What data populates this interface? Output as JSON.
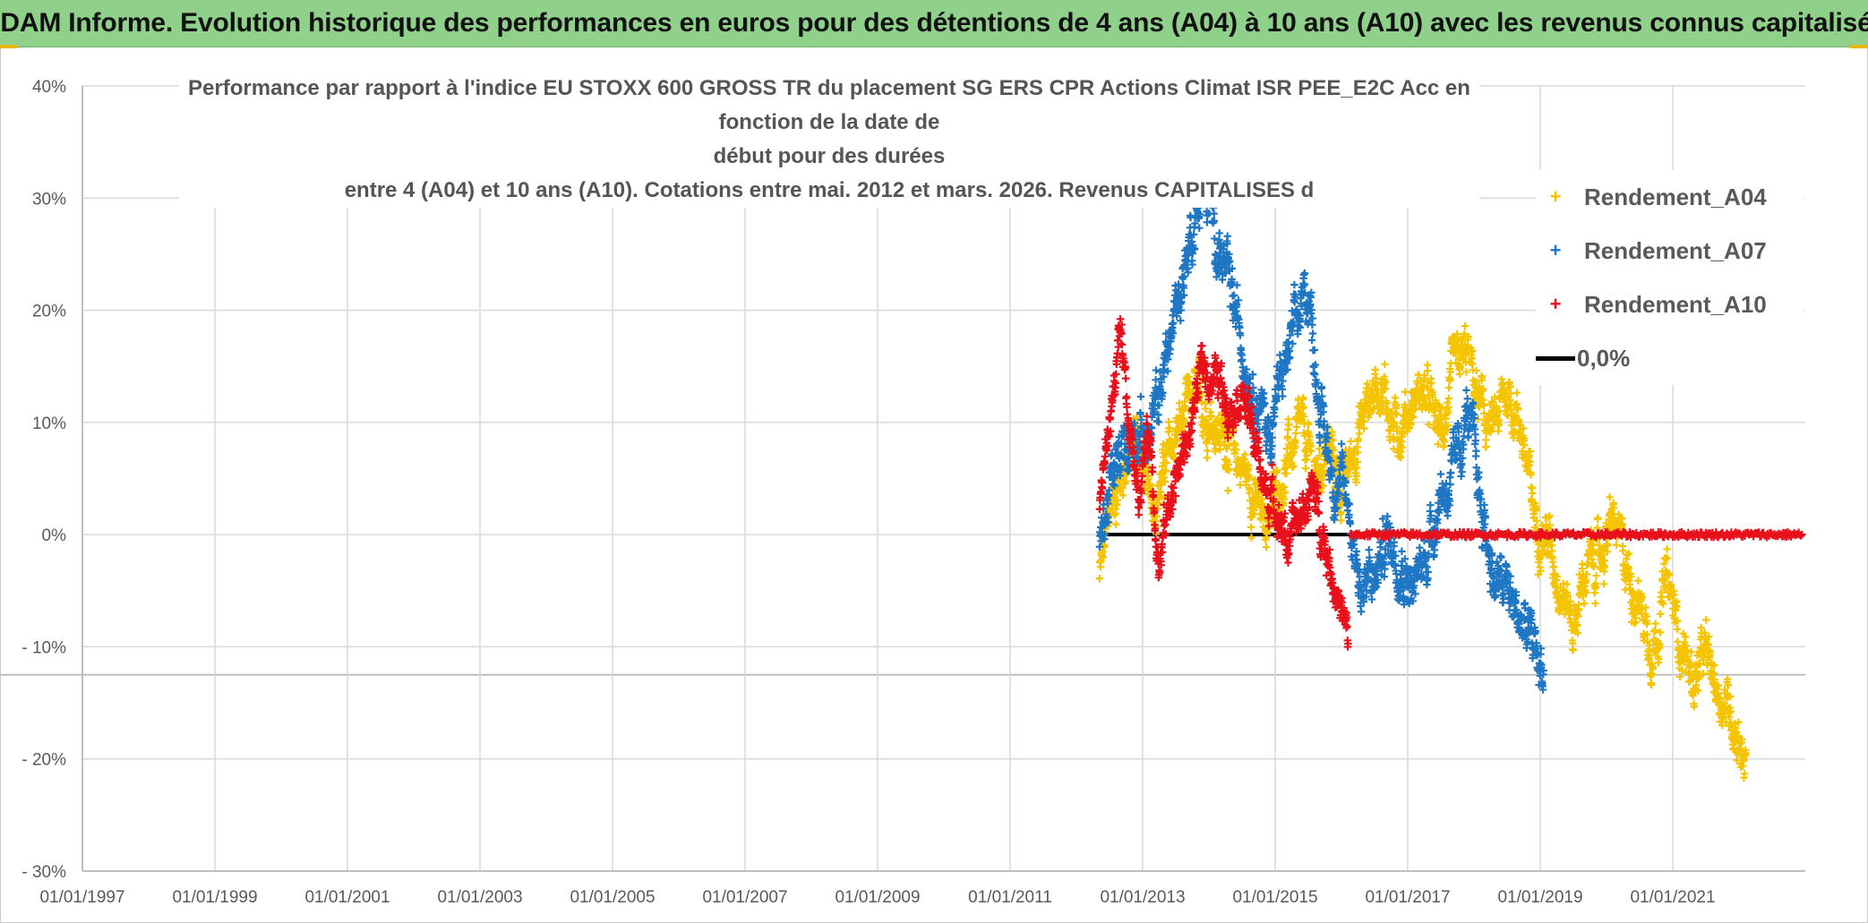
{
  "banner": {
    "title": "ADAM Informe. Evolution historique des performances en euros pour des détentions de 4 ans (A04) à 10 ans (A10) avec les revenus connus capitalisés"
  },
  "colors": {
    "banner_bg": "#8fd08a",
    "A04": "#f5c400",
    "A07": "#1f77c4",
    "A10": "#e8101a",
    "zero": "#000000",
    "grid": "#d9d9d9"
  },
  "chart_data": {
    "type": "scatter",
    "title_lines": [
      "Performance par rapport à l'indice EU STOXX 600 GROSS TR  du placement SG ERS CPR Actions Climat ISR PEE_E2C Acc en fonction de la date de",
      "début pour des durées",
      "entre 4 (A04) et 10 ans (A10). Cotations entre mai. 2012 et mars. 2026. Revenus CAPITALISES d"
    ],
    "x_range": [
      1997.0,
      2023.0
    ],
    "x_ticks": [
      {
        "value": 1997,
        "label": "01/01/1997"
      },
      {
        "value": 1999,
        "label": "01/01/1999"
      },
      {
        "value": 2001,
        "label": "01/01/2001"
      },
      {
        "value": 2003,
        "label": "01/01/2003"
      },
      {
        "value": 2005,
        "label": "01/01/2005"
      },
      {
        "value": 2007,
        "label": "01/01/2007"
      },
      {
        "value": 2009,
        "label": "01/01/2009"
      },
      {
        "value": 2011,
        "label": "01/01/2011"
      },
      {
        "value": 2013,
        "label": "01/01/2013"
      },
      {
        "value": 2015,
        "label": "01/01/2015"
      },
      {
        "value": 2017,
        "label": "01/01/2017"
      },
      {
        "value": 2019,
        "label": "01/01/2019"
      },
      {
        "value": 2021,
        "label": "01/01/2021"
      }
    ],
    "y_range": [
      -30,
      40
    ],
    "y_ticks": [
      {
        "value": 40,
        "label": "40%"
      },
      {
        "value": 30,
        "label": "30%"
      },
      {
        "value": 20,
        "label": "20%"
      },
      {
        "value": 10,
        "label": "10%"
      },
      {
        "value": 0,
        "label": "0%"
      },
      {
        "value": -10,
        "label": "- 10%"
      },
      {
        "value": -20,
        "label": "- 20%"
      },
      {
        "value": -30,
        "label": "- 30%"
      }
    ],
    "extra_hline": -12.5,
    "legend": [
      {
        "name": "Rendement_A04",
        "marker": "+",
        "color_key": "A04"
      },
      {
        "name": "Rendement_A07",
        "marker": "+",
        "color_key": "A07"
      },
      {
        "name": "Rendement_A10",
        "marker": "+",
        "color_key": "A10"
      },
      {
        "name": "0,0%",
        "marker": "line",
        "color_key": "zero"
      }
    ],
    "series": [
      {
        "name": "Rendement_A04",
        "color_key": "A04",
        "anchors": [
          [
            2012.35,
            -4
          ],
          [
            2012.5,
            2
          ],
          [
            2012.7,
            6
          ],
          [
            2012.9,
            9
          ],
          [
            2013.1,
            3
          ],
          [
            2013.3,
            5
          ],
          [
            2013.5,
            9
          ],
          [
            2013.8,
            12
          ],
          [
            2014.0,
            11
          ],
          [
            2014.2,
            9
          ],
          [
            2014.4,
            7
          ],
          [
            2014.6,
            5
          ],
          [
            2014.8,
            1
          ],
          [
            2015.0,
            3
          ],
          [
            2015.2,
            7
          ],
          [
            2015.4,
            9
          ],
          [
            2015.6,
            5
          ],
          [
            2015.8,
            8
          ],
          [
            2016.0,
            4
          ],
          [
            2016.2,
            8
          ],
          [
            2016.4,
            12
          ],
          [
            2016.6,
            14
          ],
          [
            2016.8,
            9
          ],
          [
            2017.0,
            11
          ],
          [
            2017.2,
            13
          ],
          [
            2017.5,
            9
          ],
          [
            2017.7,
            14
          ],
          [
            2017.9,
            16
          ],
          [
            2018.1,
            11
          ],
          [
            2018.3,
            9
          ],
          [
            2018.5,
            13
          ],
          [
            2018.7,
            10
          ],
          [
            2018.9,
            2
          ],
          [
            2019.1,
            0
          ],
          [
            2019.3,
            -4
          ],
          [
            2019.5,
            -8
          ],
          [
            2019.7,
            -3
          ],
          [
            2019.9,
            -2
          ],
          [
            2020.1,
            1
          ],
          [
            2020.3,
            -3
          ],
          [
            2020.5,
            -6
          ],
          [
            2020.7,
            -10
          ],
          [
            2020.9,
            -4
          ],
          [
            2021.1,
            -9
          ],
          [
            2021.3,
            -13
          ],
          [
            2021.5,
            -11
          ],
          [
            2021.7,
            -14
          ],
          [
            2021.9,
            -16
          ],
          [
            2022.1,
            -20
          ]
        ],
        "spread": 2.4
      },
      {
        "name": "Rendement_A07",
        "color_key": "A07",
        "anchors": [
          [
            2012.35,
            -1
          ],
          [
            2012.5,
            4
          ],
          [
            2012.7,
            7
          ],
          [
            2012.9,
            10
          ],
          [
            2013.1,
            8
          ],
          [
            2013.3,
            14
          ],
          [
            2013.5,
            20
          ],
          [
            2013.7,
            26
          ],
          [
            2013.9,
            31
          ],
          [
            2014.1,
            27
          ],
          [
            2014.3,
            22
          ],
          [
            2014.5,
            17
          ],
          [
            2014.7,
            13
          ],
          [
            2014.9,
            9
          ],
          [
            2015.1,
            14
          ],
          [
            2015.3,
            18
          ],
          [
            2015.5,
            22
          ],
          [
            2015.7,
            10
          ],
          [
            2015.9,
            5
          ],
          [
            2016.1,
            3
          ],
          [
            2016.3,
            -5
          ],
          [
            2016.5,
            -4
          ],
          [
            2016.7,
            0
          ],
          [
            2016.9,
            -2
          ],
          [
            2017.1,
            -5
          ],
          [
            2017.3,
            -1
          ],
          [
            2017.5,
            4
          ],
          [
            2017.7,
            5
          ],
          [
            2017.9,
            11
          ],
          [
            2018.1,
            3
          ],
          [
            2018.3,
            -4
          ],
          [
            2018.5,
            -5
          ],
          [
            2018.7,
            -8
          ],
          [
            2018.9,
            -10
          ],
          [
            2019.05,
            -12
          ]
        ],
        "spread": 2.6
      },
      {
        "name": "Rendement_A10",
        "color_key": "A10",
        "anchors": [
          [
            2012.35,
            3
          ],
          [
            2012.5,
            10
          ],
          [
            2012.65,
            17
          ],
          [
            2012.8,
            9
          ],
          [
            2012.95,
            4
          ],
          [
            2013.1,
            10
          ],
          [
            2013.25,
            -3
          ],
          [
            2013.4,
            3
          ],
          [
            2013.55,
            6
          ],
          [
            2013.7,
            9
          ],
          [
            2013.9,
            15
          ],
          [
            2014.1,
            14
          ],
          [
            2014.3,
            12
          ],
          [
            2014.5,
            13
          ],
          [
            2014.7,
            8
          ],
          [
            2014.85,
            4
          ],
          [
            2015.0,
            3
          ],
          [
            2015.2,
            -1
          ],
          [
            2015.4,
            2
          ],
          [
            2015.55,
            4
          ],
          [
            2015.7,
            1
          ],
          [
            2015.85,
            -3
          ],
          [
            2016.0,
            -7
          ],
          [
            2016.1,
            -10
          ]
        ],
        "spread": 2.0
      },
      {
        "name": "Rendement_A10_zero_tail",
        "color_key": "A10",
        "x_from": 2016.15,
        "x_to": 2022.95,
        "y": 0
      },
      {
        "name": "0,0%",
        "color_key": "zero",
        "x_from": 2012.35,
        "x_to": 2022.95,
        "y": 0,
        "line": true
      }
    ]
  }
}
